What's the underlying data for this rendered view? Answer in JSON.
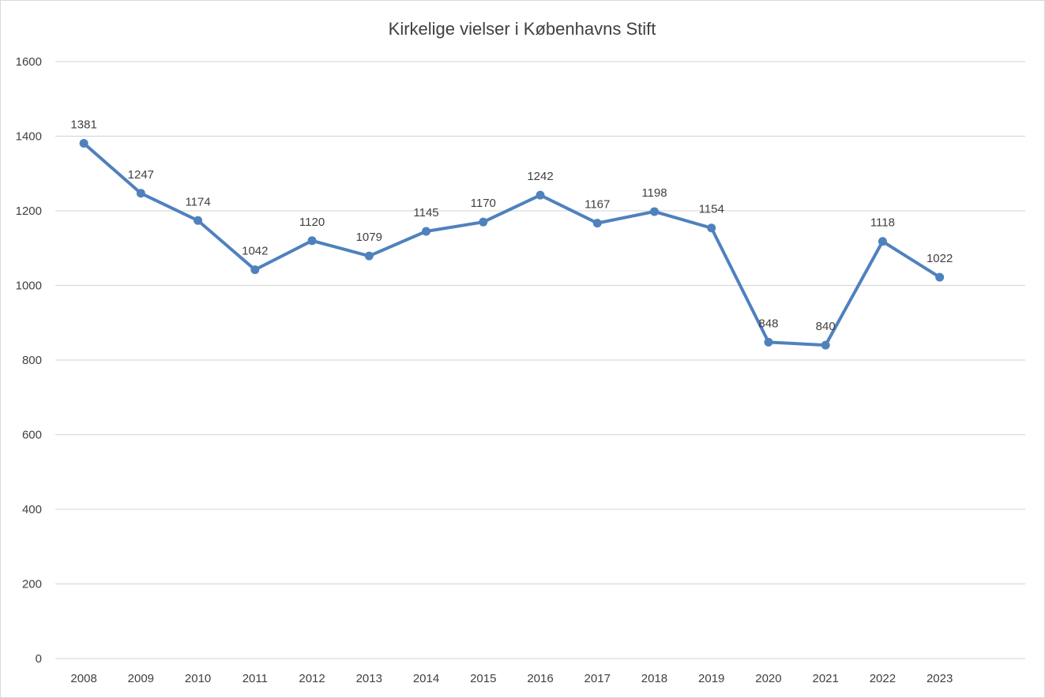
{
  "chart_data": {
    "type": "line",
    "title": "Kirkelige vielser i Københavns Stift",
    "categories": [
      "2008",
      "2009",
      "2010",
      "2011",
      "2012",
      "2013",
      "2014",
      "2015",
      "2016",
      "2017",
      "2018",
      "2019",
      "2020",
      "2021",
      "2022",
      "2023"
    ],
    "series": [
      {
        "values": [
          1381,
          1247,
          1174,
          1042,
          1120,
          1079,
          1145,
          1170,
          1242,
          1167,
          1198,
          1154,
          848,
          840,
          1118,
          1022
        ],
        "color": "#4f81bd"
      }
    ],
    "ylim": [
      0,
      1600
    ],
    "yticks": [
      0,
      200,
      400,
      600,
      800,
      1000,
      1200,
      1400,
      1600
    ],
    "grid": true,
    "data_labels": true,
    "marker": "circle",
    "gridline_color": "#d9d9d9"
  }
}
